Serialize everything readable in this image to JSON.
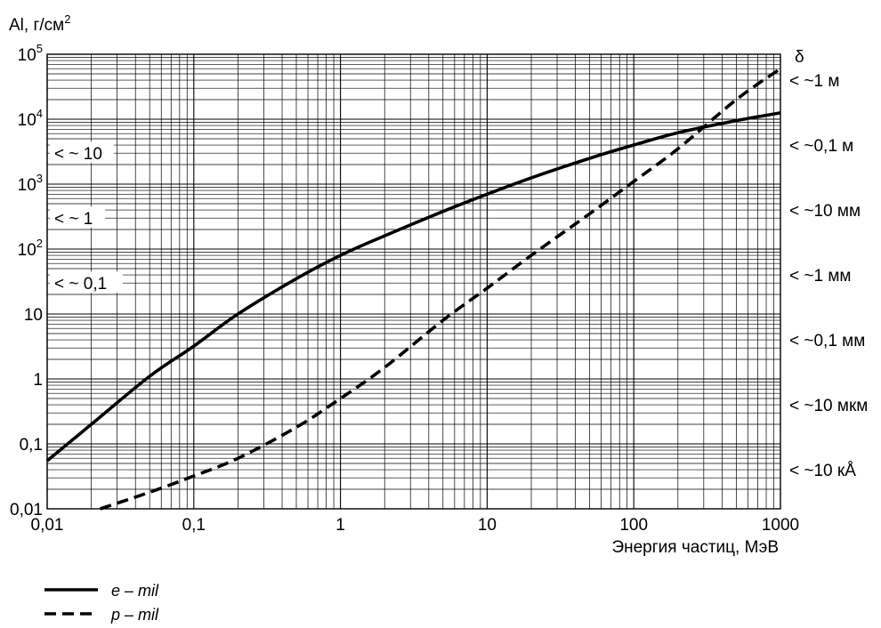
{
  "chart_data": {
    "type": "line",
    "title": "",
    "ylabel": "Al, г/см",
    "ylabel_sup": "2",
    "xlabel": "Энергия частиц, МэВ",
    "x_scale": "log",
    "y_scale": "log",
    "xlim": [
      0.01,
      1000
    ],
    "ylim": [
      0.01,
      100000
    ],
    "grid": true,
    "x_ticks": [
      {
        "value": 0.01,
        "label": "0,01"
      },
      {
        "value": 0.1,
        "label": "0,1"
      },
      {
        "value": 1,
        "label": "1"
      },
      {
        "value": 10,
        "label": "10"
      },
      {
        "value": 100,
        "label": "100"
      },
      {
        "value": 1000,
        "label": "1000"
      }
    ],
    "y_ticks": [
      {
        "value": 0.01,
        "label": "0,01",
        "base": "",
        "exp": ""
      },
      {
        "value": 0.1,
        "label": "0,1",
        "base": "",
        "exp": ""
      },
      {
        "value": 1,
        "label": "1",
        "base": "",
        "exp": ""
      },
      {
        "value": 10,
        "label": "10",
        "base": "",
        "exp": ""
      },
      {
        "value": 100,
        "label": "",
        "base": "10",
        "exp": "2"
      },
      {
        "value": 1000,
        "label": "",
        "base": "10",
        "exp": "3"
      },
      {
        "value": 10000,
        "label": "",
        "base": "10",
        "exp": "4"
      },
      {
        "value": 100000,
        "label": "",
        "base": "10",
        "exp": "5"
      }
    ],
    "right_axis": {
      "title": "δ",
      "labels": [
        {
          "label": "< ~1 м",
          "y": 40000
        },
        {
          "label": "< ~0,1 м",
          "y": 4000
        },
        {
          "label": "< ~10 мм",
          "y": 400
        },
        {
          "label": "< ~1 мм",
          "y": 40
        },
        {
          "label": "< ~0,1 мм",
          "y": 4
        },
        {
          "label": "< ~10 мкм",
          "y": 0.4
        },
        {
          "label": "< ~10 кÅ",
          "y": 0.04
        }
      ]
    },
    "annotations": [
      {
        "label": "< ~ 10",
        "y": 3000
      },
      {
        "label": "< ~ 1",
        "y": 300
      },
      {
        "label": "< ~ 0,1",
        "y": 30
      }
    ],
    "series": [
      {
        "name": "e – mil",
        "style": "solid",
        "x": [
          0.01,
          0.02,
          0.05,
          0.1,
          0.2,
          0.5,
          1,
          2,
          5,
          10,
          20,
          50,
          100,
          200,
          500,
          1000
        ],
        "y": [
          0.055,
          0.2,
          1.1,
          3.2,
          10,
          35,
          80,
          160,
          380,
          700,
          1250,
          2500,
          4000,
          6200,
          9500,
          12500
        ]
      },
      {
        "name": "p – mil",
        "style": "dashed",
        "x": [
          0.023,
          0.05,
          0.1,
          0.2,
          0.5,
          1,
          2,
          5,
          10,
          20,
          50,
          100,
          200,
          500,
          1000
        ],
        "y": [
          0.01,
          0.018,
          0.032,
          0.06,
          0.18,
          0.5,
          1.5,
          8,
          25,
          80,
          350,
          1100,
          3500,
          20000,
          60000
        ]
      }
    ]
  },
  "legend": [
    {
      "label": "e – mil",
      "style": "solid"
    },
    {
      "label": "p – mil",
      "style": "dashed"
    }
  ]
}
